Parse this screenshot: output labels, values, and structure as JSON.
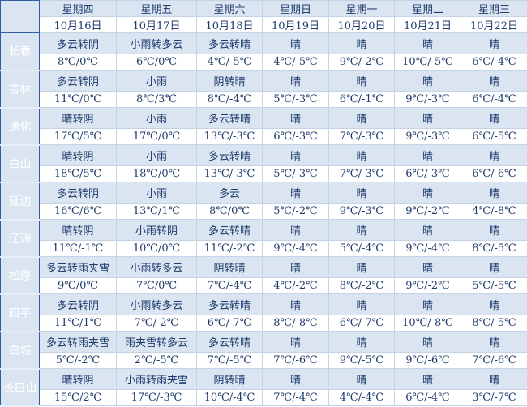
{
  "header": {
    "days": [
      "星期四",
      "星期五",
      "星期六",
      "星期日",
      "星期一",
      "星期二",
      "星期三"
    ],
    "dates": [
      "10月16日",
      "10月17日",
      "10月18日",
      "10月19日",
      "10月20日",
      "10月21日",
      "10月22日"
    ]
  },
  "colors": {
    "city_column": "#4a78b8",
    "weather_row": "#dbe5f1",
    "temp_row": "#ffffff",
    "text": "#1f3c6e"
  },
  "cities": [
    {
      "name": "长春",
      "weather": [
        "多云转阴",
        "小雨转多云",
        "多云转晴",
        "晴",
        "晴",
        "晴",
        "晴"
      ],
      "temps": [
        "8℃/0℃",
        "6℃/0℃",
        "4℃/-5℃",
        "4℃/-5℃",
        "9℃/-2℃",
        "10℃/-5℃",
        "6℃/-4℃"
      ]
    },
    {
      "name": "吉林",
      "weather": [
        "多云转阴",
        "小雨",
        "阴转晴",
        "晴",
        "晴",
        "晴",
        "晴"
      ],
      "temps": [
        "11℃/0℃",
        "8℃/3℃",
        "8℃/-4℃",
        "5℃/-3℃",
        "6℃/-1℃",
        "9℃/-3℃",
        "6℃/-4℃"
      ]
    },
    {
      "name": "通化",
      "weather": [
        "晴转阴",
        "小雨",
        "多云转晴",
        "晴",
        "晴",
        "晴",
        "晴"
      ],
      "temps": [
        "17℃/5℃",
        "17℃/0℃",
        "13℃/-3℃",
        "6℃/-3℃",
        "7℃/-3℃",
        "9℃/-3℃",
        "6℃/-5℃"
      ]
    },
    {
      "name": "白山",
      "weather": [
        "晴转阴",
        "小雨",
        "多云转晴",
        "晴",
        "晴",
        "晴",
        "晴"
      ],
      "temps": [
        "18℃/5℃",
        "18℃/0℃",
        "13℃/-3℃",
        "5℃/-3℃",
        "7℃/-3℃",
        "6℃/-3℃",
        "6℃/-6℃"
      ]
    },
    {
      "name": "延边",
      "weather": [
        "多云转阴",
        "小雨",
        "多云",
        "晴",
        "晴",
        "晴",
        "晴"
      ],
      "temps": [
        "16℃/6℃",
        "13℃/1℃",
        "8℃/0℃",
        "5℃/-2℃",
        "9℃/-3℃",
        "9℃/-2℃",
        "4℃/-8℃"
      ]
    },
    {
      "name": "辽源",
      "weather": [
        "晴转阴",
        "小雨转阴",
        "多云转晴",
        "晴",
        "晴",
        "晴",
        "晴"
      ],
      "temps": [
        "11℃/-1℃",
        "10℃/0℃",
        "11℃/-2℃",
        "9℃/-4℃",
        "5℃/-4℃",
        "9℃/-4℃",
        "8℃/-5℃"
      ]
    },
    {
      "name": "松原",
      "weather": [
        "多云转雨夹雪",
        "小雨转多云",
        "阴转晴",
        "晴",
        "晴",
        "晴",
        "晴"
      ],
      "temps": [
        "9℃/0℃",
        "7℃/0℃",
        "7℃/-4℃",
        "4℃/-2℃",
        "8℃/-2℃",
        "9℃/-2℃",
        "5℃/-5℃"
      ]
    },
    {
      "name": "四平",
      "weather": [
        "多云转阴",
        "小雨转多云",
        "多云转晴",
        "晴",
        "晴",
        "晴",
        "晴"
      ],
      "temps": [
        "11℃/1℃",
        "7℃/-2℃",
        "6℃/-7℃",
        "8℃/-8℃",
        "6℃/-7℃",
        "10℃/-8℃",
        "8℃/-5℃"
      ]
    },
    {
      "name": "白城",
      "weather": [
        "多云转雨夹雪",
        "雨夹雪转多云",
        "多云转晴",
        "晴",
        "晴",
        "晴",
        "晴"
      ],
      "temps": [
        "5℃/-2℃",
        "2℃/-5℃",
        "7℃/-5℃",
        "7℃/-6℃",
        "9℃/-5℃",
        "9℃/-6℃",
        "7℃/-6℃"
      ]
    },
    {
      "name": "长白山",
      "weather": [
        "晴转阴",
        "小雨转雨夹雪",
        "阴转晴",
        "晴",
        "晴",
        "晴",
        "晴"
      ],
      "temps": [
        "15℃/2℃",
        "17℃/-3℃",
        "10℃/-4℃",
        "7℃/-4℃",
        "4℃/-4℃",
        "6℃/-4℃",
        "3℃/-7℃"
      ]
    }
  ]
}
